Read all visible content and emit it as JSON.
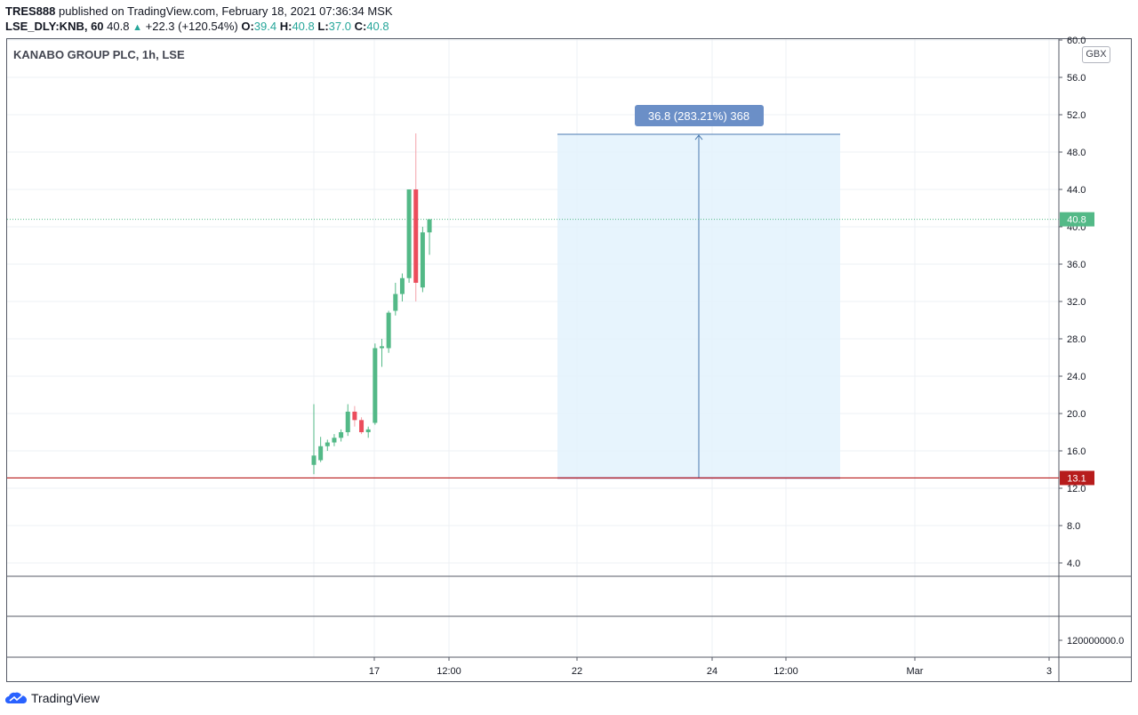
{
  "header": {
    "author": "TRES888",
    "published": "published on TradingView.com, February 18, 2021 07:36:34 MSK",
    "symbol": "LSE_DLY:KNB, 60",
    "last": "40.8",
    "change": "+22.3 (+120.54%)",
    "o_label": "O:",
    "o": "39.4",
    "h_label": "H:",
    "h": "40.8",
    "l_label": "L:",
    "l": "37.0",
    "c_label": "C:",
    "c": "40.8"
  },
  "chart_title": "KANABO GROUP PLC, 1h, LSE",
  "currency": "GBX",
  "branding": "TradingView",
  "colors": {
    "up": "#53b987",
    "down": "#eb4d5c",
    "support": "#b71c1c",
    "range_fill": "#e3f2fd",
    "range_line": "#4a79b0",
    "label_bg": "#6b8fc7"
  },
  "chart_data": {
    "type": "candlestick",
    "title": "KANABO GROUP PLC, 1h, LSE",
    "y_axis": {
      "ticks": [
        "4.0",
        "8.0",
        "12.0",
        "16.0",
        "20.0",
        "24.0",
        "28.0",
        "32.0",
        "36.0",
        "40.0",
        "44.0",
        "48.0",
        "52.0",
        "56.0",
        "60.0"
      ],
      "range": [
        0,
        60
      ],
      "unit": "GBX"
    },
    "x_axis": {
      "ticks": [
        "17",
        "12:00",
        "22",
        "24",
        "12:00",
        "Mar",
        "3"
      ]
    },
    "grid": true,
    "candles": [
      {
        "o": 14.5,
        "h": 21.0,
        "l": 13.5,
        "c": 15.5
      },
      {
        "o": 15.0,
        "h": 17.5,
        "l": 14.8,
        "c": 16.5
      },
      {
        "o": 16.5,
        "h": 17.2,
        "l": 16.0,
        "c": 16.9
      },
      {
        "o": 16.9,
        "h": 17.8,
        "l": 16.5,
        "c": 17.4
      },
      {
        "o": 17.4,
        "h": 18.3,
        "l": 17.0,
        "c": 18.0
      },
      {
        "o": 18.0,
        "h": 21.0,
        "l": 17.6,
        "c": 20.2
      },
      {
        "o": 20.2,
        "h": 20.8,
        "l": 18.6,
        "c": 19.3
      },
      {
        "o": 19.3,
        "h": 19.6,
        "l": 17.8,
        "c": 18.0
      },
      {
        "o": 18.0,
        "h": 18.6,
        "l": 17.4,
        "c": 18.3
      },
      {
        "o": 19.0,
        "h": 27.5,
        "l": 18.8,
        "c": 27.0
      },
      {
        "o": 27.0,
        "h": 28.0,
        "l": 25.0,
        "c": 27.2
      },
      {
        "o": 27.0,
        "h": 31.0,
        "l": 26.5,
        "c": 30.8
      },
      {
        "o": 31.0,
        "h": 34.0,
        "l": 30.5,
        "c": 32.8
      },
      {
        "o": 32.8,
        "h": 35.0,
        "l": 32.0,
        "c": 34.5
      },
      {
        "o": 34.5,
        "h": 44.0,
        "l": 34.0,
        "c": 44.0
      },
      {
        "o": 44.0,
        "h": 50.0,
        "l": 32.0,
        "c": 34.0
      },
      {
        "o": 33.5,
        "h": 40.0,
        "l": 33.0,
        "c": 39.4
      },
      {
        "o": 39.4,
        "h": 40.8,
        "l": 37.0,
        "c": 40.8
      }
    ],
    "last_price": 40.8,
    "last_price_label": "40.8",
    "support_level": 13.1,
    "support_label": "13.1",
    "price_range": {
      "from": 13.1,
      "to": 49.9,
      "label": "36.8 (283.21%) 368"
    },
    "volume_axis_label": "120000000.0"
  }
}
